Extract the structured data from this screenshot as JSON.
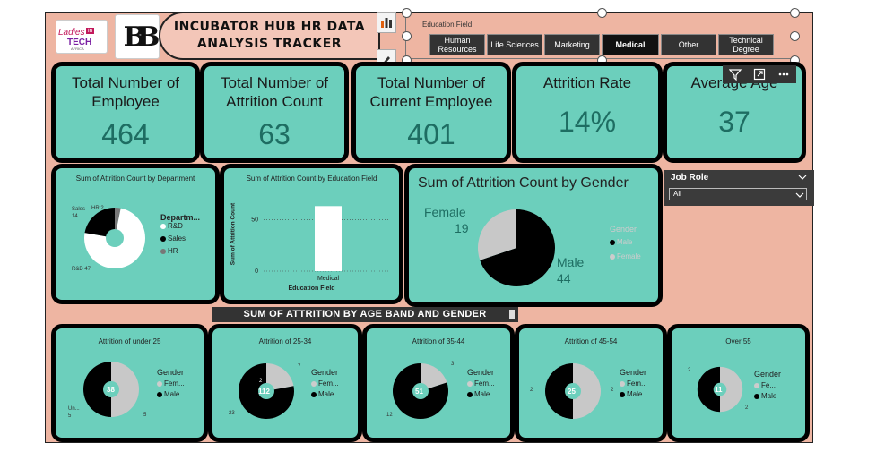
{
  "logos": {
    "ladies_in_tech": {
      "line1": "Ladies",
      "badge": "in",
      "line2": "TECH",
      "line3": "AFRICA"
    },
    "bb_logo": "BB"
  },
  "header": {
    "title_line1": "INCUBATOR HUB HR DATA",
    "title_line2": "ANALYSIS  TRACKER"
  },
  "education_slicer": {
    "title": "Education Field",
    "options": [
      {
        "label": "Human Resources",
        "selected": false
      },
      {
        "label": "Life Sciences",
        "selected": false
      },
      {
        "label": "Marketing",
        "selected": false
      },
      {
        "label": "Medical",
        "selected": true
      },
      {
        "label": "Other",
        "selected": false
      },
      {
        "label": "Technical Degree",
        "selected": false
      }
    ]
  },
  "icons": {
    "chart_tool": "bar-chart-icon",
    "format_tool": "paint-brush-icon",
    "filter": "filter-icon",
    "focus": "focus-mode-icon",
    "more": "more-options-icon"
  },
  "kpis": [
    {
      "label": "Total Number of Employee",
      "value": "464"
    },
    {
      "label": "Total Number of Attrition Count",
      "value": "63"
    },
    {
      "label": "Total Number of Current Employee",
      "value": "401"
    },
    {
      "label": "Attrition Rate",
      "value": "14%"
    },
    {
      "label": "Average Age",
      "value": "37"
    }
  ],
  "dept_chart": {
    "title": "Sum of Attrition Count by Department",
    "legend_title": "Departm...",
    "legend": [
      "R&D",
      "Sales",
      "HR"
    ],
    "label_sales": "Sales 14",
    "label_hr": "HR 2",
    "label_rd": "R&D 47"
  },
  "edu_chart": {
    "title": "Sum of Attrition Count by Education Field",
    "ylabel": "Sum of Attrition Count",
    "xlabel": "Education Field",
    "tick_50": "50",
    "tick_0": "0",
    "category": "Medical"
  },
  "gender_chart": {
    "title": "Sum of Attrition Count by Gender",
    "legend_title": "Gender",
    "legend": [
      "Male",
      "Female"
    ],
    "female_label": "Female",
    "female_value": "19",
    "male_label": "Male",
    "male_value": "44"
  },
  "job_role": {
    "title": "Job Role",
    "value": "All"
  },
  "age_band_header": "SUM OF ATTRITION BY AGE BAND AND GENDER",
  "age_bands": [
    {
      "title": "Attrition of under 25",
      "center": "38",
      "legend_female": "Fem...",
      "legend_male": "Male",
      "lbl_left": "Un... 5",
      "lbl_right": "5"
    },
    {
      "title": "Attrition of 25-34",
      "center": "112",
      "legend_female": "Fem...",
      "legend_male": "Male",
      "lbl_top_right": "7",
      "lbl_top_mid": "2",
      "lbl_bottom_left": "23"
    },
    {
      "title": "Attrition of 35-44",
      "center": "51",
      "legend_female": "Fem...",
      "legend_male": "Male",
      "lbl_top_right": "3",
      "lbl_bottom_left": "12"
    },
    {
      "title": "Attrition of 45-54",
      "center": "25",
      "legend_female": "Fem...",
      "legend_male": "Male",
      "lbl_left": "2",
      "lbl_right": "2"
    },
    {
      "title": "Over 55",
      "center": "11",
      "legend_female": "Fe...",
      "legend_male": "Male",
      "lbl_top_left": "2",
      "lbl_bottom_right": "2"
    }
  ],
  "legend_title_gender": "Gender",
  "colors": {
    "teal": "#6ccfbc",
    "canvas": "#eeb5a2",
    "male": "#000000",
    "female": "#c8c8c8",
    "value_teal": "#1e6d62"
  },
  "chart_data": [
    {
      "type": "pie",
      "title": "Sum of Attrition Count by Department",
      "categories": [
        "R&D",
        "Sales",
        "HR"
      ],
      "values": [
        47,
        14,
        2
      ]
    },
    {
      "type": "bar",
      "title": "Sum of Attrition Count by Education Field",
      "categories": [
        "Medical"
      ],
      "values": [
        63
      ],
      "xlabel": "Education Field",
      "ylabel": "Sum of Attrition Count",
      "ylim": [
        0,
        65
      ]
    },
    {
      "type": "pie",
      "title": "Sum of Attrition Count by Gender",
      "categories": [
        "Female",
        "Male"
      ],
      "values": [
        19,
        44
      ]
    }
  ]
}
